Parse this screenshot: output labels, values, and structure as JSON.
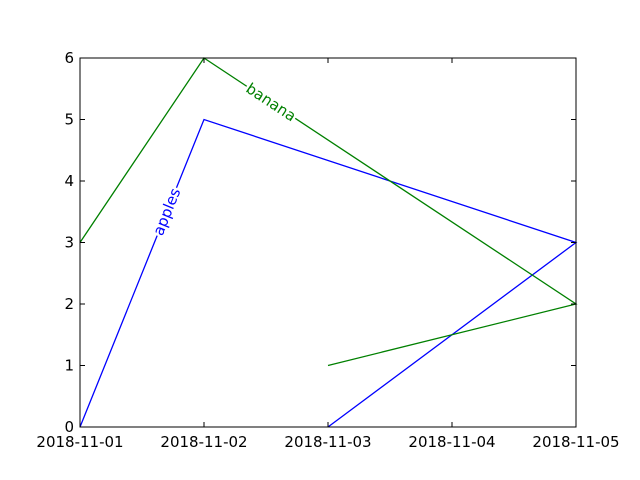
{
  "chart_data": {
    "type": "line",
    "title": "",
    "xlabel": "",
    "ylabel": "",
    "x_scale": "date",
    "xlim": [
      "2018-11-01",
      "2018-11-05"
    ],
    "ylim": [
      0,
      6
    ],
    "x_ticks": [
      "2018-11-01",
      "2018-11-02",
      "2018-11-03",
      "2018-11-04",
      "2018-11-05"
    ],
    "y_ticks": [
      0,
      1,
      2,
      3,
      4,
      5,
      6
    ],
    "grid": false,
    "legend": "none",
    "series": [
      {
        "name": "apples",
        "color": "#0000ff",
        "label_position": "inline on first segment",
        "points": [
          {
            "x": "2018-11-01",
            "y": 0
          },
          {
            "x": "2018-11-02",
            "y": 5
          },
          {
            "x": "2018-11-05",
            "y": 3
          },
          {
            "x": "2018-11-03",
            "y": 0
          }
        ]
      },
      {
        "name": "banana",
        "color": "#008000",
        "label_position": "inline on second segment",
        "points": [
          {
            "x": "2018-11-01",
            "y": 3
          },
          {
            "x": "2018-11-02",
            "y": 6
          },
          {
            "x": "2018-11-05",
            "y": 2
          },
          {
            "x": "2018-11-03",
            "y": 1
          }
        ]
      }
    ]
  }
}
